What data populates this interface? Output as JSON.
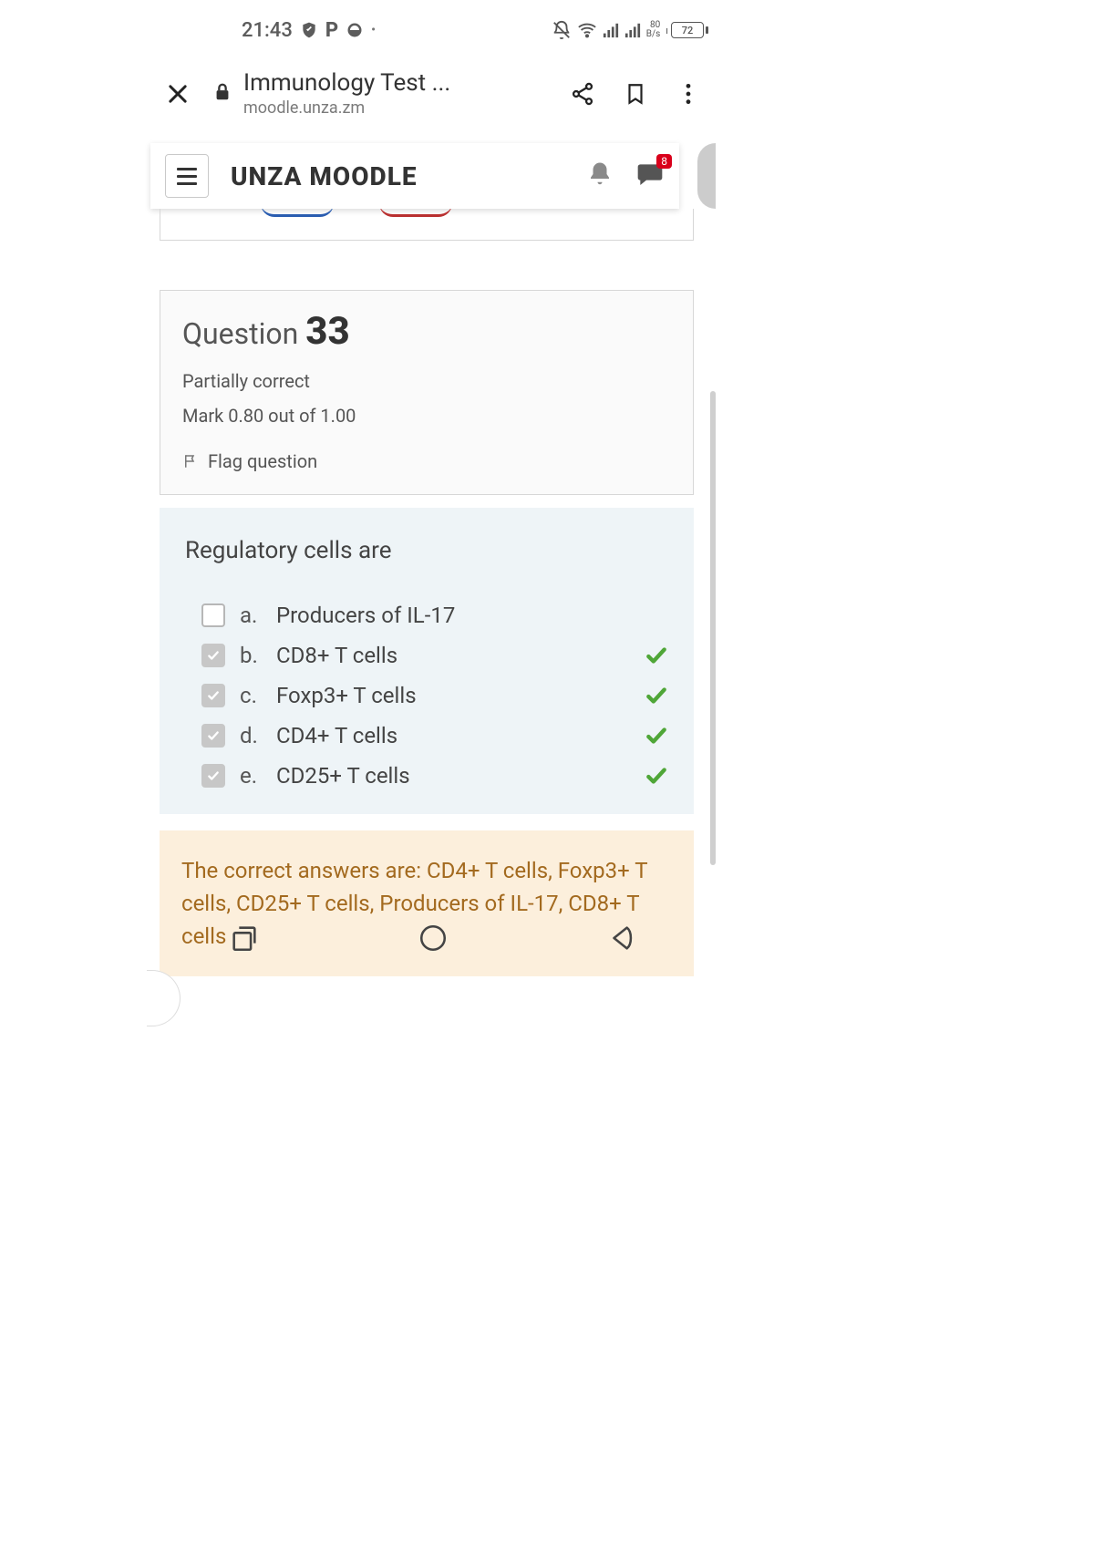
{
  "status": {
    "time": "21:43",
    "net_rate_top": "80",
    "net_rate_bottom": "B/s",
    "battery_text": "72"
  },
  "browser": {
    "page_title": "Immunology Test ...",
    "page_url": "moodle.unza.zm"
  },
  "site": {
    "brand": "UNZA MOODLE",
    "chat_badge": "8"
  },
  "question": {
    "label": "Question",
    "number": "33",
    "status": "Partially correct",
    "mark": "Mark 0.80 out of 1.00",
    "flag": "Flag question",
    "text": "Regulatory cells are",
    "answers": [
      {
        "letter": "a.",
        "label": "Producers of IL-17",
        "checked": false,
        "correct": false
      },
      {
        "letter": "b.",
        "label": "CD8+ T cells",
        "checked": true,
        "correct": true
      },
      {
        "letter": "c.",
        "label": "Foxp3+ T cells",
        "checked": true,
        "correct": true
      },
      {
        "letter": "d.",
        "label": "CD4+ T cells",
        "checked": true,
        "correct": true
      },
      {
        "letter": "e.",
        "label": "CD25+ T cells",
        "checked": true,
        "correct": true
      }
    ],
    "feedback": "The correct answers are: CD4+ T cells, Foxp3+ T cells, CD25+ T cells, Producers of IL-17, CD8+ T cells"
  },
  "colors": {
    "correct_check": "#4fa638",
    "feedback_bg": "#fcefdc",
    "feedback_text": "#a36a1f",
    "qbody_bg": "#eef4f7",
    "badge_bg": "#d9001b"
  }
}
